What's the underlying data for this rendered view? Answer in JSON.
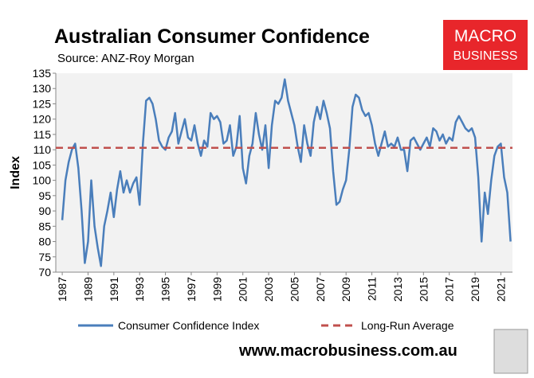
{
  "chart_data": {
    "type": "line",
    "title": "Australian Consumer Confidence",
    "subtitle": "Source: ANZ-Roy Morgan",
    "ylabel": "Index",
    "logo": [
      "MACRO",
      "BUSINESS"
    ],
    "website": "www.macrobusiness.com.au",
    "xlim": [
      1986.5,
      2021.9
    ],
    "xticks": [
      1987,
      1989,
      1991,
      1993,
      1995,
      1997,
      1999,
      2001,
      2003,
      2005,
      2007,
      2009,
      2011,
      2013,
      2015,
      2017,
      2019,
      2021
    ],
    "ylim": [
      70,
      135
    ],
    "yticks": [
      70,
      75,
      80,
      85,
      90,
      95,
      100,
      105,
      110,
      115,
      120,
      125,
      130,
      135
    ],
    "legend": "bottom",
    "series": [
      {
        "name": "Consumer Confidence Index",
        "color": "#4a7ebb",
        "dashed": false,
        "x": [
          1987,
          1987.25,
          1987.5,
          1987.75,
          1988,
          1988.25,
          1988.5,
          1988.75,
          1989,
          1989.25,
          1989.5,
          1989.75,
          1990,
          1990.25,
          1990.5,
          1990.75,
          1991,
          1991.25,
          1991.5,
          1991.75,
          1992,
          1992.25,
          1992.5,
          1992.75,
          1993,
          1993.25,
          1993.5,
          1993.75,
          1994,
          1994.25,
          1994.5,
          1994.75,
          1995,
          1995.25,
          1995.5,
          1995.75,
          1996,
          1996.25,
          1996.5,
          1996.75,
          1997,
          1997.25,
          1997.5,
          1997.75,
          1998,
          1998.25,
          1998.5,
          1998.75,
          1999,
          1999.25,
          1999.5,
          1999.75,
          2000,
          2000.25,
          2000.5,
          2000.75,
          2001,
          2001.25,
          2001.5,
          2001.75,
          2002,
          2002.25,
          2002.5,
          2002.75,
          2003,
          2003.25,
          2003.5,
          2003.75,
          2004,
          2004.25,
          2004.5,
          2004.75,
          2005,
          2005.25,
          2005.5,
          2005.75,
          2006,
          2006.25,
          2006.5,
          2006.75,
          2007,
          2007.25,
          2007.5,
          2007.75,
          2008,
          2008.25,
          2008.5,
          2008.75,
          2009,
          2009.25,
          2009.5,
          2009.75,
          2010,
          2010.25,
          2010.5,
          2010.75,
          2011,
          2011.25,
          2011.5,
          2011.75,
          2012,
          2012.25,
          2012.5,
          2012.75,
          2013,
          2013.25,
          2013.5,
          2013.75,
          2014,
          2014.25,
          2014.5,
          2014.75,
          2015,
          2015.25,
          2015.5,
          2015.75,
          2016,
          2016.25,
          2016.5,
          2016.75,
          2017,
          2017.25,
          2017.5,
          2017.75,
          2018,
          2018.25,
          2018.5,
          2018.75,
          2019,
          2019.25,
          2019.5,
          2019.75,
          2020,
          2020.25,
          2020.5,
          2020.75,
          2021,
          2021.25,
          2021.5,
          2021.75
        ],
        "values": [
          87,
          100,
          106,
          110,
          112,
          104,
          90,
          73,
          80,
          100,
          85,
          78,
          72,
          85,
          90,
          96,
          88,
          97,
          103,
          96,
          100,
          96,
          99,
          101,
          92,
          112,
          126,
          127,
          125,
          120,
          113,
          111,
          110,
          114,
          116,
          122,
          112,
          116,
          120,
          114,
          113,
          118,
          112,
          108,
          113,
          111,
          122,
          120,
          121,
          119,
          112,
          113,
          118,
          108,
          111,
          121,
          104,
          99,
          108,
          112,
          122,
          115,
          110,
          118,
          104,
          118,
          126,
          125,
          127,
          133,
          126,
          122,
          118,
          111,
          106,
          118,
          112,
          108,
          119,
          124,
          120,
          126,
          122,
          117,
          103,
          92,
          93,
          97,
          100,
          110,
          124,
          128,
          127,
          123,
          121,
          122,
          118,
          112,
          108,
          112,
          116,
          111,
          112,
          111,
          114,
          110,
          110,
          103,
          113,
          114,
          112,
          110,
          112,
          114,
          111,
          117,
          116,
          113,
          115,
          112,
          114,
          113,
          119,
          121,
          119,
          117,
          116,
          117,
          114,
          101,
          80,
          96,
          89,
          100,
          108,
          111,
          112,
          101,
          96,
          80
        ]
      },
      {
        "name": "Long-Run Average",
        "color": "#c0504d",
        "dashed": true,
        "x": [
          1986.5,
          2021.9
        ],
        "values": [
          110.6,
          110.6
        ]
      }
    ]
  }
}
